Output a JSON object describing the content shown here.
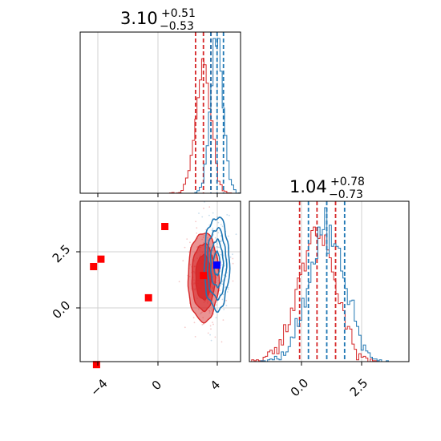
{
  "colors": {
    "red": "#d62728",
    "blue": "#1f77b4",
    "square_red": "#ff0000",
    "square_blue": "#0000ff"
  },
  "chart_data": [
    {
      "panel": "top-left",
      "type": "histogram",
      "title_value": "3.10",
      "title_plus": "+0.51",
      "title_minus": "−0.53",
      "xlim": [
        -5.2,
        5.6
      ],
      "grid": true,
      "series": [
        {
          "color": "red",
          "center": 3.1,
          "sd": 0.52,
          "quantile_lines": [
            2.57,
            3.1,
            3.61
          ]
        },
        {
          "color": "blue",
          "center": 4.0,
          "sd": 0.42,
          "quantile_lines": [
            3.6,
            4.02,
            4.45
          ]
        }
      ]
    },
    {
      "panel": "bottom-left",
      "type": "scatter-contour",
      "xlim": [
        -5.2,
        5.6
      ],
      "ylim": [
        -1.8,
        3.6
      ],
      "xticks": [
        -4,
        0,
        4
      ],
      "xtick_labels": [
        "−4",
        "0",
        "4"
      ],
      "yticks": [
        0.0,
        2.5
      ],
      "ytick_labels": [
        "0.0",
        "2.5"
      ],
      "grid": true,
      "red_contour": {
        "center": [
          3.1,
          1.04
        ],
        "sx": 0.52,
        "sy": 0.75
      },
      "blue_contour": {
        "center": [
          4.0,
          1.5
        ],
        "sx": 0.42,
        "sy": 0.78
      },
      "red_markers": [
        [
          -4.3,
          1.4
        ],
        [
          -3.8,
          1.65
        ],
        [
          -4.1,
          -1.9
        ],
        [
          -0.6,
          0.35
        ],
        [
          0.5,
          2.75
        ],
        [
          3.1,
          1.1
        ]
      ],
      "blue_markers": [
        [
          4.0,
          1.45
        ]
      ]
    },
    {
      "panel": "bottom-right",
      "type": "histogram",
      "title_value": "1.04",
      "title_plus": "+0.78",
      "title_minus": "−0.73",
      "xlim": [
        -1.8,
        4.9
      ],
      "xticks": [
        0.0,
        2.5
      ],
      "xtick_labels": [
        "0.0",
        "2.5"
      ],
      "grid": true,
      "series": [
        {
          "color": "red",
          "center": 1.04,
          "sd": 0.76,
          "quantile_lines": [
            0.31,
            1.04,
            1.82
          ]
        },
        {
          "color": "blue",
          "center": 1.45,
          "sd": 0.76,
          "quantile_lines": [
            0.68,
            1.45,
            2.2
          ]
        }
      ]
    }
  ]
}
